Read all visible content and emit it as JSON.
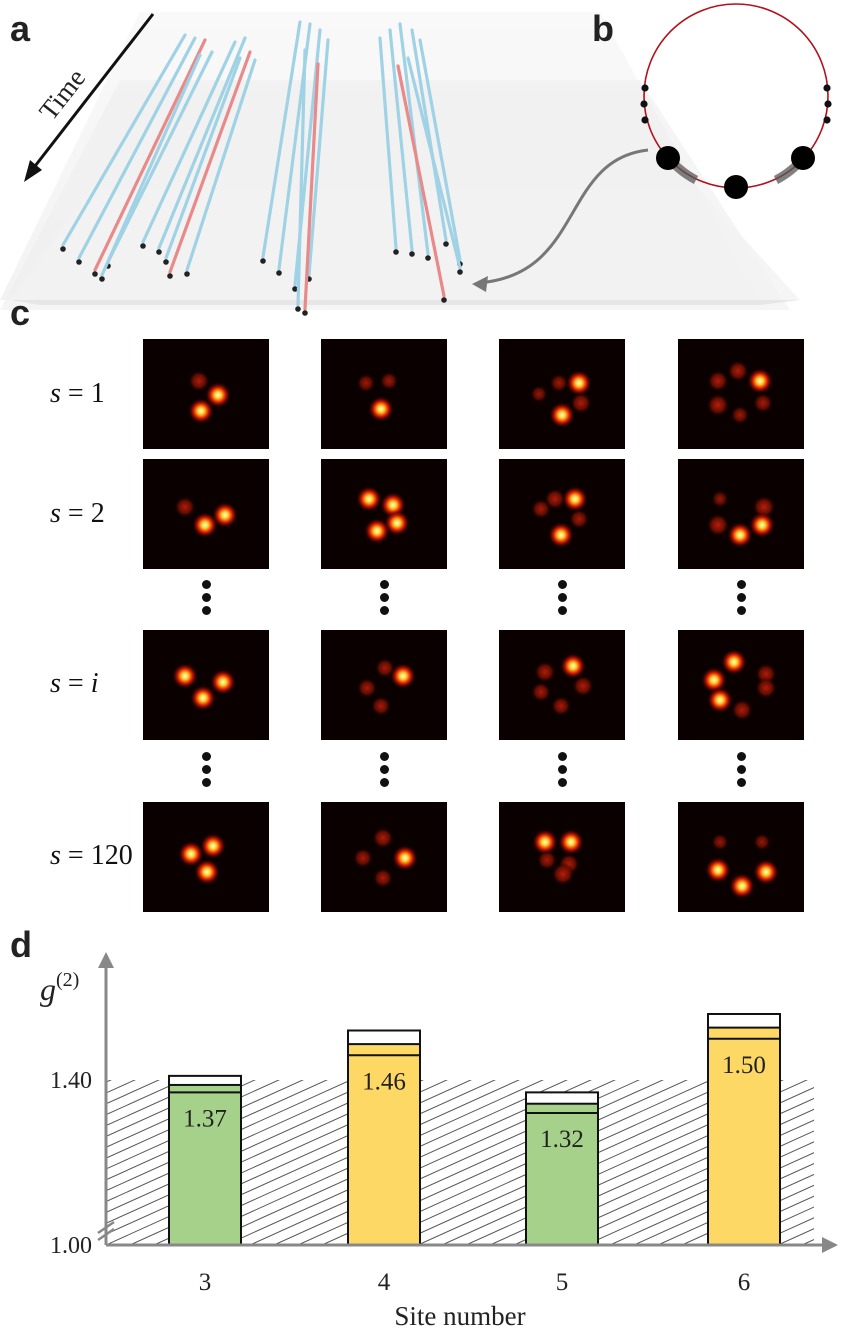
{
  "panels": {
    "a": "a",
    "b": "b",
    "c": "c",
    "d": "d"
  },
  "panel_a": {
    "axis_label": "Time"
  },
  "panel_c": {
    "rows": [
      {
        "label_var": "s",
        "label_eq": " = ",
        "label_val": "1"
      },
      {
        "label_var": "s",
        "label_eq": " = ",
        "label_val": "2"
      },
      {
        "label_var": "s",
        "label_eq": " = ",
        "label_val": "i"
      },
      {
        "label_var": "s",
        "label_eq": " = ",
        "label_val": "120"
      }
    ]
  },
  "chart_data": {
    "type": "bar",
    "ylabel": "g(2)",
    "xlabel": "Site number",
    "categories": [
      "3",
      "4",
      "5",
      "6"
    ],
    "values": [
      1.37,
      1.46,
      1.32,
      1.5
    ],
    "value_labels": [
      "1.37",
      "1.46",
      "1.32",
      "1.50"
    ],
    "error_upper": [
      1.41,
      1.52,
      1.37,
      1.56
    ],
    "bar_colors": [
      "#a6d18a",
      "#fdd865",
      "#a6d18a",
      "#fdd865"
    ],
    "ytick_labels": [
      "1.00",
      "1.40"
    ],
    "yticks": [
      1.0,
      1.4
    ],
    "hatched_region_max": 1.4,
    "grid": false,
    "legend": "none"
  }
}
